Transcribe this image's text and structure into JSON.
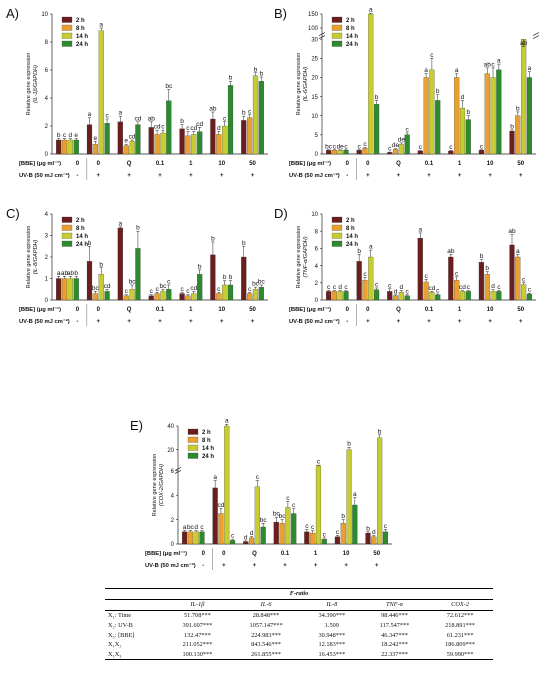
{
  "figure": {
    "bbe_label": "[BBE] (μg ml⁻¹)",
    "uvb_label": "UV-B (50 mJ cm⁻²)",
    "bbe_values": [
      "0",
      "0",
      "Q",
      "0.1",
      "1",
      "10",
      "50"
    ],
    "uvb_values": [
      "-",
      "+",
      "+",
      "+",
      "+",
      "+",
      "+"
    ],
    "series_names": [
      "2 h",
      "8 h",
      "14 h",
      "24 h"
    ],
    "colors": {
      "2 h": "#6b1e1e",
      "8 h": "#e8a030",
      "14 h": "#c6cc32",
      "24 h": "#2e8a2e"
    }
  },
  "chart_data": [
    {
      "type": "bar",
      "panel": "A)",
      "ylabel": "Relative gene expression\n(IL-1β/GAPDH)",
      "ylim": [
        0,
        10
      ],
      "yticks": [
        0,
        2,
        4,
        6,
        8,
        10
      ],
      "categories": [
        "0",
        "0",
        "Q",
        "0.1",
        "1",
        "10",
        "50"
      ],
      "series": [
        {
          "name": "2 h",
          "values": [
            1.0,
            2.1,
            2.3,
            1.9,
            1.8,
            2.5,
            2.4
          ],
          "errors": [
            0.1,
            0.5,
            0.4,
            0.4,
            0.3,
            0.5,
            0.3
          ],
          "letters": [
            "b",
            "a",
            "a",
            "ab",
            "b",
            "ab",
            "b"
          ]
        },
        {
          "name": "8 h",
          "values": [
            1.0,
            0.7,
            0.6,
            1.4,
            1.3,
            1.4,
            2.6
          ],
          "errors": [
            0.1,
            0.2,
            0.1,
            0.3,
            0.3,
            0.2,
            0.2
          ],
          "letters": [
            "c",
            "e",
            "e",
            "cd",
            "c",
            "d",
            "c"
          ]
        },
        {
          "name": "14 h",
          "values": [
            1.0,
            8.8,
            0.9,
            1.5,
            1.4,
            2.0,
            5.6
          ],
          "errors": [
            0.1,
            0.2,
            0.1,
            0.2,
            0.2,
            0.3,
            0.2
          ],
          "letters": [
            "d",
            "a",
            "cd",
            "c",
            "cd",
            "c",
            "b"
          ]
        },
        {
          "name": "24 h",
          "values": [
            1.0,
            2.2,
            2.1,
            3.8,
            1.6,
            4.9,
            5.2
          ],
          "errors": [
            0.1,
            0.3,
            0.2,
            0.8,
            0.3,
            0.3,
            0.3
          ],
          "letters": [
            "e",
            "c",
            "cd",
            "bc",
            "cd",
            "b",
            "b"
          ]
        }
      ]
    },
    {
      "type": "bar",
      "panel": "B)",
      "ylabel": "Relative gene expression\n(IL-6/GAPDH)",
      "ylim": [
        0,
        150
      ],
      "yticks": [
        0,
        5,
        10,
        15,
        20,
        25,
        30,
        100,
        150
      ],
      "broken_axis": true,
      "categories": [
        "0",
        "0",
        "Q",
        "0.1",
        "1",
        "10",
        "50"
      ],
      "series": [
        {
          "name": "2 h",
          "values": [
            1.0,
            1.0,
            0.4,
            0.8,
            0.8,
            1.0,
            6.0
          ],
          "errors": [
            0.1,
            0.1,
            0.1,
            0.1,
            0.1,
            0.1,
            0.3
          ],
          "letters": [
            "bc",
            "c",
            "c",
            "c",
            "c",
            "c",
            "b"
          ]
        },
        {
          "name": "8 h",
          "values": [
            1.0,
            1.5,
            1.2,
            20.0,
            20.0,
            21.0,
            10.0
          ],
          "errors": [
            0.1,
            0.2,
            0.2,
            1.0,
            1.0,
            1.5,
            1.0
          ],
          "letters": [
            "c",
            "c",
            "de",
            "a",
            "a",
            "ab",
            "b"
          ]
        },
        {
          "name": "14 h",
          "values": [
            1.0,
            150.0,
            2.5,
            22.0,
            12.0,
            20.0,
            30.0
          ],
          "errors": [
            0.1,
            3.0,
            0.4,
            3.0,
            2.0,
            2.5,
            4.0
          ],
          "letters": [
            "de",
            "a",
            "de",
            "c",
            "d",
            "c",
            "ab"
          ]
        },
        {
          "name": "24 h",
          "values": [
            1.0,
            13.0,
            5.0,
            14.0,
            9.0,
            22.0,
            20.0
          ],
          "errors": [
            0.1,
            1.0,
            0.5,
            1.5,
            1.0,
            1.5,
            1.5
          ],
          "letters": [
            "c",
            "b",
            "c",
            "b",
            "b",
            "a",
            "a"
          ]
        }
      ]
    },
    {
      "type": "bar",
      "panel": "C)",
      "ylabel": "Relative gene expression\n(IL-8/GAPDH)",
      "ylim": [
        0,
        4
      ],
      "yticks": [
        0,
        1,
        2,
        3,
        4
      ],
      "categories": [
        "0",
        "0",
        "Q",
        "0.1",
        "1",
        "10",
        "50"
      ],
      "series": [
        {
          "name": "2 h",
          "values": [
            1.0,
            1.8,
            3.35,
            0.2,
            0.3,
            2.1,
            2.0
          ],
          "errors": [
            0.1,
            0.7,
            0.05,
            0.05,
            0.05,
            0.6,
            0.5
          ],
          "letters": [
            "a",
            "b",
            "a",
            "c",
            "c",
            "b",
            "b"
          ]
        },
        {
          "name": "8 h",
          "values": [
            1.0,
            0.3,
            0.2,
            0.3,
            0.2,
            0.3,
            0.3
          ],
          "errors": [
            0.1,
            0.1,
            0.05,
            0.05,
            0.05,
            0.05,
            0.05
          ],
          "letters": [
            "ab",
            "bc",
            "c",
            "c",
            "c",
            "c",
            "c"
          ]
        },
        {
          "name": "14 h",
          "values": [
            1.0,
            1.2,
            0.5,
            0.4,
            0.3,
            0.7,
            0.5
          ],
          "errors": [
            0.1,
            0.3,
            0.2,
            0.1,
            0.1,
            0.2,
            0.1
          ],
          "letters": [
            "ab",
            "b",
            "bc",
            "bc",
            "cd",
            "b",
            "bc"
          ]
        },
        {
          "name": "24 h",
          "values": [
            1.0,
            0.4,
            2.4,
            0.5,
            1.2,
            0.7,
            0.6
          ],
          "errors": [
            0.1,
            0.1,
            0.8,
            0.2,
            0.2,
            0.2,
            0.1
          ],
          "letters": [
            "b",
            "cd",
            "b",
            "c",
            "b",
            "b",
            "bc"
          ]
        }
      ]
    },
    {
      "type": "bar",
      "panel": "D)",
      "ylabel": "Relative gene expression\n(TNF-α/GAPDH)",
      "ylim": [
        0,
        10
      ],
      "yticks": [
        0,
        2,
        4,
        6,
        8,
        10
      ],
      "categories": [
        "0",
        "0",
        "Q",
        "0.1",
        "1",
        "10",
        "50"
      ],
      "series": [
        {
          "name": "2 h",
          "values": [
            1.0,
            4.5,
            1.0,
            7.2,
            5.0,
            4.4,
            6.4
          ],
          "errors": [
            0.1,
            0.8,
            0.3,
            0.6,
            0.3,
            0.3,
            1.2
          ],
          "letters": [
            "c",
            "b",
            "c",
            "a",
            "ab",
            "b",
            "ab"
          ]
        },
        {
          "name": "8 h",
          "values": [
            1.0,
            2.3,
            0.5,
            2.1,
            2.3,
            3.0,
            5.0
          ],
          "errors": [
            0.1,
            0.3,
            0.1,
            0.3,
            0.4,
            0.3,
            0.3
          ],
          "letters": [
            "c",
            "c",
            "d",
            "c",
            "c",
            "b",
            "a"
          ]
        },
        {
          "name": "14 h",
          "values": [
            1.0,
            5.0,
            0.9,
            0.9,
            1.0,
            1.0,
            1.8
          ],
          "errors": [
            0.1,
            0.8,
            0.2,
            0.1,
            0.1,
            0.2,
            0.2
          ],
          "letters": [
            "d",
            "a",
            "d",
            "cd",
            "cd",
            "d",
            "c"
          ]
        },
        {
          "name": "24 h",
          "values": [
            1.0,
            1.2,
            0.5,
            0.6,
            1.0,
            1.0,
            0.7
          ],
          "errors": [
            0.1,
            0.2,
            0.1,
            0.1,
            0.1,
            0.1,
            0.1
          ],
          "letters": [
            "c",
            "c",
            "c",
            "c",
            "c",
            "c",
            "c"
          ]
        }
      ]
    },
    {
      "type": "bar",
      "panel": "E)",
      "ylabel": "Relative gene expression\n(COX-2/GAPDH)",
      "ylim": [
        0,
        40
      ],
      "yticks": [
        0,
        2,
        4,
        6,
        20,
        40
      ],
      "broken_axis": true,
      "categories": [
        "0",
        "0",
        "Q",
        "0.1",
        "1",
        "10",
        "50"
      ],
      "series": [
        {
          "name": "2 h",
          "values": [
            1.0,
            4.6,
            0.2,
            1.8,
            1.0,
            0.6,
            0.9
          ],
          "errors": [
            0.1,
            0.6,
            0.05,
            0.4,
            0.2,
            0.1,
            0.1
          ],
          "letters": [
            "a",
            "a",
            "d",
            "bc",
            "c",
            "c",
            "b"
          ]
        },
        {
          "name": "8 h",
          "values": [
            1.0,
            2.5,
            0.5,
            1.7,
            0.9,
            1.7,
            0.6
          ],
          "errors": [
            0.1,
            0.4,
            0.1,
            0.3,
            0.2,
            0.3,
            0.1
          ],
          "letters": [
            "bc",
            "cd",
            "d",
            "bc",
            "c",
            "b",
            "d"
          ]
        },
        {
          "name": "14 h",
          "values": [
            1.0,
            40.0,
            4.7,
            3.0,
            6.5,
            20.0,
            30.0
          ],
          "errors": [
            0.1,
            1.5,
            0.5,
            0.5,
            0.3,
            2.0,
            2.5
          ],
          "letters": [
            "d",
            "a",
            "c",
            "c",
            "c",
            "b",
            "b"
          ]
        },
        {
          "name": "24 h",
          "values": [
            1.0,
            0.3,
            1.4,
            2.5,
            0.4,
            3.2,
            1.0
          ],
          "errors": [
            0.1,
            0.1,
            0.3,
            0.4,
            0.1,
            0.6,
            0.2
          ],
          "letters": [
            "c",
            "c",
            "bc",
            "c",
            "c",
            "a",
            "c"
          ]
        }
      ]
    }
  ],
  "ftable": {
    "caption": "F-ratio",
    "columns": [
      "",
      "IL-1β",
      "IL-6",
      "IL-8",
      "TNF-α",
      "COX-2"
    ],
    "rows": [
      [
        "X₁: Time",
        "51.708***",
        "28.848***",
        "34.390***",
        "98.446***",
        "72.612***"
      ],
      [
        "X₂: UV-B",
        "391.607***",
        "1057.147***",
        "1.509",
        "117.547***",
        "218.891***"
      ],
      [
        "X₃: [BBE]",
        "132.47***",
        "224.983***",
        "30.948***",
        "46.347***",
        "61.231***"
      ],
      [
        "X₁X₂",
        "211.052***",
        "843.546***",
        "12.183***",
        "18.242***",
        "186.809***"
      ],
      [
        "X₁X₃",
        "100.130***",
        "261.855***",
        "16.453***",
        "22.337***",
        "59.990***"
      ]
    ]
  }
}
